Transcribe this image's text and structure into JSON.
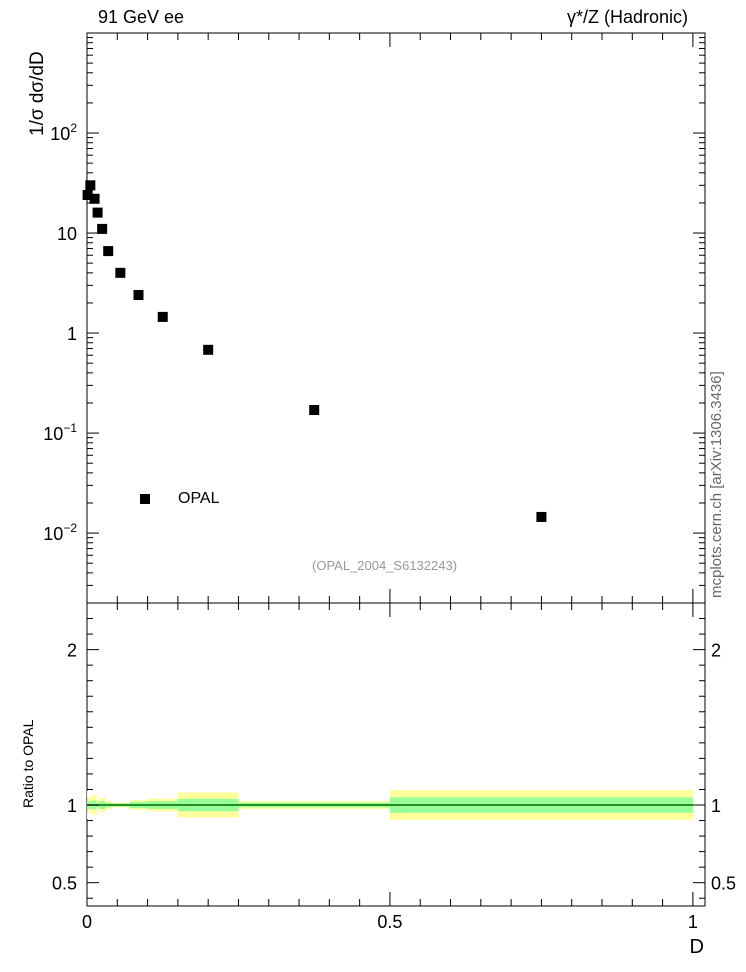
{
  "header": {
    "left": "91 GeV ee",
    "right": "γ*/Z (Hadronic)"
  },
  "side_credit": "mcplots.cern.ch [arXiv:1306.3436]",
  "analysis_tag": "(OPAL_2004_S6132243)",
  "colors": {
    "band_outer": "#ffff99",
    "band_inner": "#99ff99",
    "line": "#006600",
    "marker": "#000000",
    "analysis_tag": "#999999",
    "side_credit": "#666666"
  },
  "chart_data": [
    {
      "type": "scatter",
      "panel": "main",
      "ylabel": "1/σ dσ/dD",
      "yscale": "log",
      "ylim": [
        0.002,
        1000
      ],
      "xlim": [
        0,
        1.02
      ],
      "yticks": [
        {
          "v": 0.01,
          "base": "10",
          "exp": "−2"
        },
        {
          "v": 0.1,
          "base": "10",
          "exp": "−1"
        },
        {
          "v": 1,
          "base": "1",
          "exp": ""
        },
        {
          "v": 10,
          "base": "10",
          "exp": ""
        },
        {
          "v": 100,
          "base": "10",
          "exp": "2"
        }
      ],
      "legend": {
        "label": "OPAL",
        "position": "lower-left"
      },
      "series": [
        {
          "name": "OPAL",
          "x": [
            0.001,
            0.0055,
            0.0125,
            0.0175,
            0.025,
            0.035,
            0.055,
            0.085,
            0.125,
            0.2,
            0.375,
            0.75
          ],
          "y": [
            24,
            30,
            22,
            16,
            11,
            6.6,
            4.0,
            2.4,
            1.45,
            0.68,
            0.17,
            0.0145
          ]
        }
      ]
    },
    {
      "type": "area",
      "panel": "ratio",
      "ylabel": "Ratio to OPAL",
      "xlabel": "D",
      "xlim": [
        0,
        1.02
      ],
      "ylim": [
        0.35,
        2.3
      ],
      "xticks": [
        {
          "v": 0,
          "label": "0"
        },
        {
          "v": 0.5,
          "label": "0.5"
        },
        {
          "v": 1,
          "label": "1"
        }
      ],
      "yticks": [
        {
          "v": 0.5,
          "label": "0.5"
        },
        {
          "v": 1,
          "label": "1"
        },
        {
          "v": 2,
          "label": "2"
        }
      ],
      "bins": [
        {
          "x0": 0.0,
          "x1": 0.002,
          "inner": [
            0.955,
            1.045
          ],
          "outer": [
            0.91,
            1.09
          ]
        },
        {
          "x0": 0.002,
          "x1": 0.009,
          "inner": [
            0.975,
            1.025
          ],
          "outer": [
            0.95,
            1.05
          ]
        },
        {
          "x0": 0.009,
          "x1": 0.016,
          "inner": [
            0.97,
            1.03
          ],
          "outer": [
            0.935,
            1.065
          ]
        },
        {
          "x0": 0.016,
          "x1": 0.02,
          "inner": [
            0.985,
            1.015
          ],
          "outer": [
            0.97,
            1.03
          ]
        },
        {
          "x0": 0.02,
          "x1": 0.03,
          "inner": [
            0.975,
            1.025
          ],
          "outer": [
            0.955,
            1.045
          ]
        },
        {
          "x0": 0.03,
          "x1": 0.04,
          "inner": [
            0.985,
            1.015
          ],
          "outer": [
            0.975,
            1.025
          ]
        },
        {
          "x0": 0.04,
          "x1": 0.07,
          "inner": [
            0.99,
            1.01
          ],
          "outer": [
            0.985,
            1.015
          ]
        },
        {
          "x0": 0.07,
          "x1": 0.1,
          "inner": [
            0.98,
            1.02
          ],
          "outer": [
            0.97,
            1.03
          ]
        },
        {
          "x0": 0.1,
          "x1": 0.15,
          "inner": [
            0.975,
            1.025
          ],
          "outer": [
            0.96,
            1.04
          ]
        },
        {
          "x0": 0.15,
          "x1": 0.25,
          "inner": [
            0.96,
            1.04
          ],
          "outer": [
            0.92,
            1.08
          ]
        },
        {
          "x0": 0.25,
          "x1": 0.5,
          "inner": [
            0.985,
            1.015
          ],
          "outer": [
            0.975,
            1.025
          ]
        },
        {
          "x0": 0.5,
          "x1": 1.0,
          "inner": [
            0.95,
            1.05
          ],
          "outer": [
            0.905,
            1.095
          ]
        }
      ]
    }
  ]
}
